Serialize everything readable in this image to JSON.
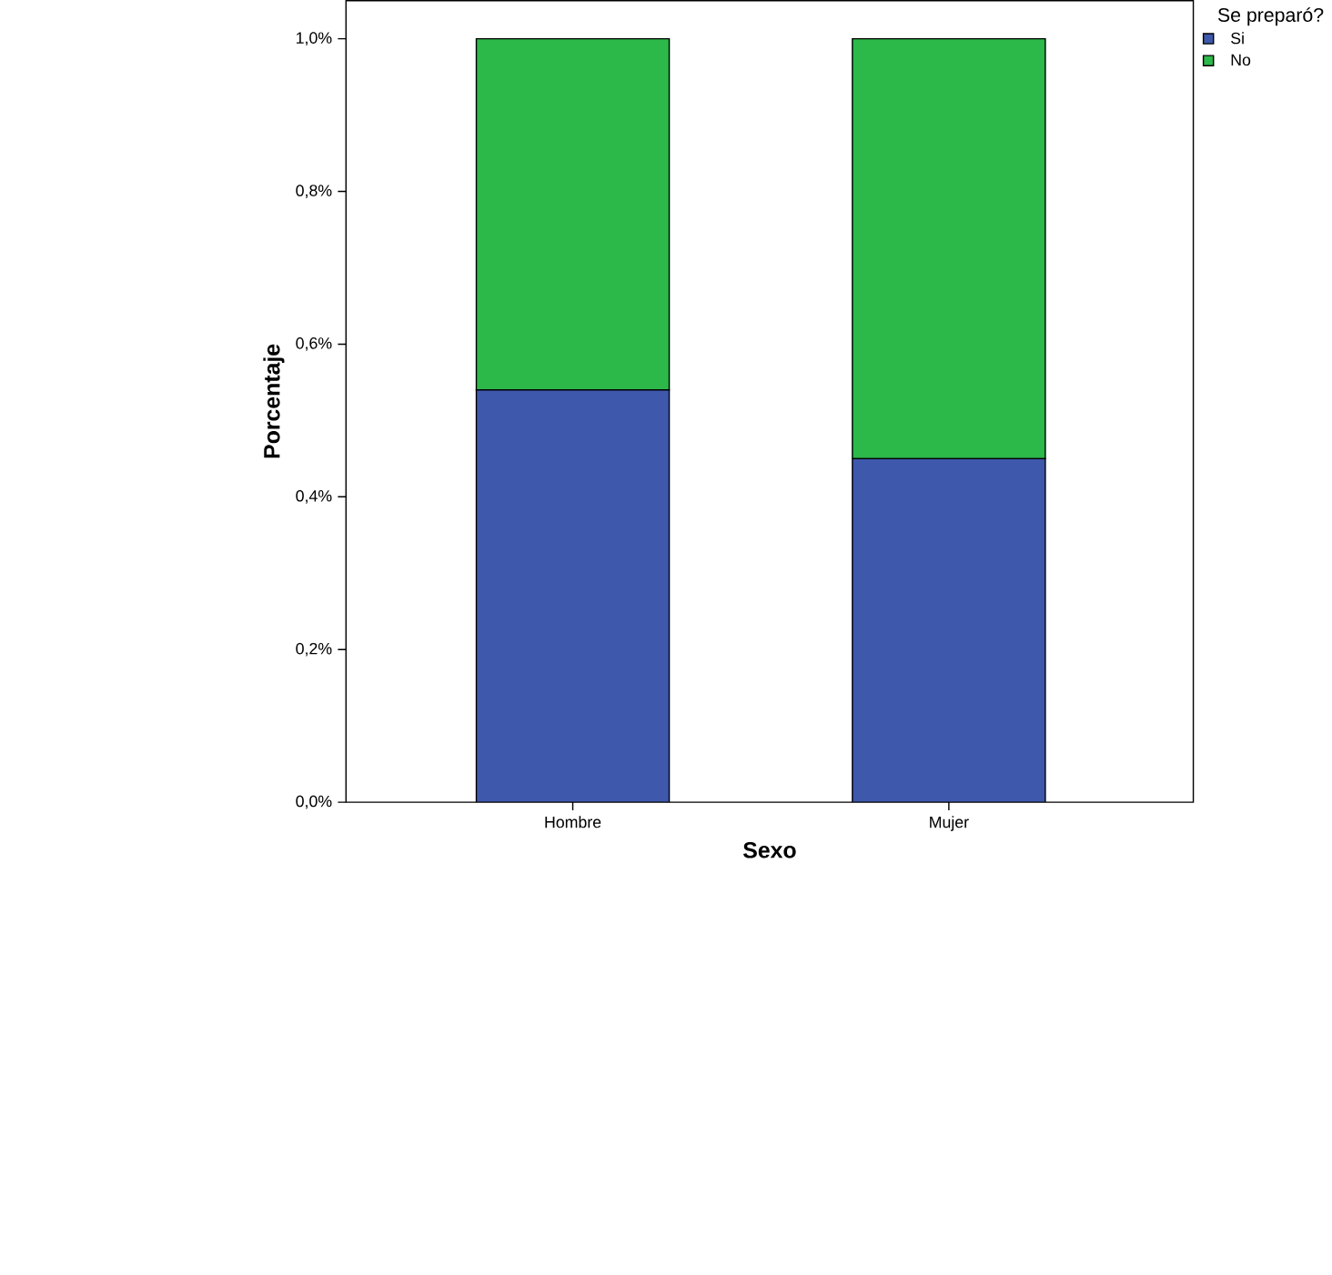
{
  "chart_data": {
    "type": "bar",
    "stacked": true,
    "xlabel": "Sexo",
    "ylabel": "Porcentaje",
    "legend_title": "Se preparó?",
    "legend": "right",
    "categories": [
      "Hombre",
      "Mujer"
    ],
    "series": [
      {
        "name": "Si",
        "color": "#3e58ac",
        "values": [
          0.54,
          0.45
        ]
      },
      {
        "name": "No",
        "color": "#2db84a",
        "values": [
          0.46,
          0.55
        ]
      }
    ],
    "ylim": [
      0,
      1.05
    ],
    "yticks": [
      {
        "value": 0,
        "label": "0,0%"
      },
      {
        "value": 0.2,
        "label": "0,2%"
      },
      {
        "value": 0.4,
        "label": "0,4%"
      },
      {
        "value": 0.6,
        "label": "0,6%"
      },
      {
        "value": 0.8,
        "label": "0,8%"
      },
      {
        "value": 1.0,
        "label": "1,0%"
      }
    ]
  }
}
